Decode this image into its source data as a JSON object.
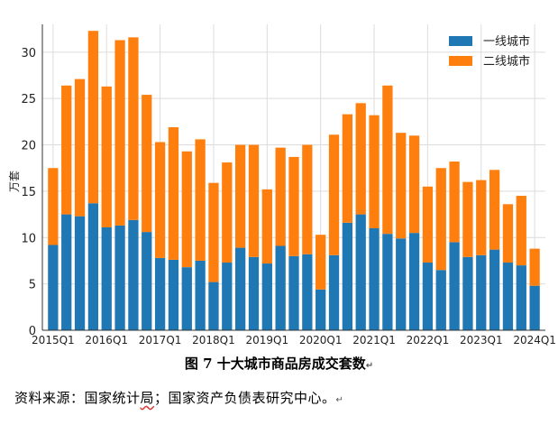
{
  "chart_data": {
    "type": "bar",
    "stacked": true,
    "ylabel": "万套",
    "ylim": [
      0,
      33
    ],
    "yticks": [
      0,
      5,
      10,
      15,
      20,
      25,
      30
    ],
    "grid": true,
    "legend_position": "top-right",
    "xtick_labels": [
      "2015Q1",
      "2016Q1",
      "2017Q1",
      "2018Q1",
      "2019Q1",
      "2020Q1",
      "2021Q1",
      "2022Q1",
      "2023Q1",
      "2024Q1"
    ],
    "categories": [
      "2015Q1",
      "2015Q2",
      "2015Q3",
      "2015Q4",
      "2016Q1",
      "2016Q2",
      "2016Q3",
      "2016Q4",
      "2017Q1",
      "2017Q2",
      "2017Q3",
      "2017Q4",
      "2018Q1",
      "2018Q2",
      "2018Q3",
      "2018Q4",
      "2019Q1",
      "2019Q2",
      "2019Q3",
      "2019Q4",
      "2020Q1",
      "2020Q2",
      "2020Q3",
      "2020Q4",
      "2021Q1",
      "2021Q2",
      "2021Q3",
      "2021Q4",
      "2022Q1",
      "2022Q2",
      "2022Q3",
      "2022Q4",
      "2023Q1",
      "2023Q2",
      "2023Q3",
      "2023Q4",
      "2024Q1"
    ],
    "series": [
      {
        "name": "一线城市",
        "color": "#1f77b4",
        "values": [
          9.2,
          12.5,
          12.3,
          13.7,
          11.1,
          11.3,
          11.9,
          10.6,
          7.8,
          7.6,
          6.8,
          7.5,
          5.2,
          7.3,
          8.9,
          7.9,
          7.2,
          9.1,
          8.0,
          8.2,
          4.4,
          8.1,
          11.6,
          12.5,
          11.0,
          10.4,
          9.9,
          10.5,
          7.3,
          6.5,
          9.5,
          7.9,
          8.1,
          8.7,
          7.3,
          7.0,
          4.8
        ]
      },
      {
        "name": "二线城市",
        "color": "#ff7f0e",
        "values": [
          8.3,
          13.9,
          14.8,
          18.6,
          15.2,
          20.0,
          19.7,
          14.8,
          12.5,
          14.3,
          12.5,
          13.1,
          10.7,
          10.8,
          11.1,
          12.1,
          8.0,
          10.6,
          10.7,
          11.8,
          5.9,
          13.0,
          11.7,
          12.0,
          12.2,
          16.0,
          11.4,
          10.5,
          8.2,
          11.0,
          8.7,
          8.1,
          8.1,
          8.6,
          6.3,
          7.5,
          4.0
        ]
      }
    ]
  },
  "caption": {
    "text": "图 7 十大城市商品房成交套数",
    "return_mark": "↵"
  },
  "source": {
    "prefix": "资料来源：国家统计",
    "underlined": "局",
    "suffix": "；国家资产负债表研究中心。",
    "return_mark": "↵"
  }
}
